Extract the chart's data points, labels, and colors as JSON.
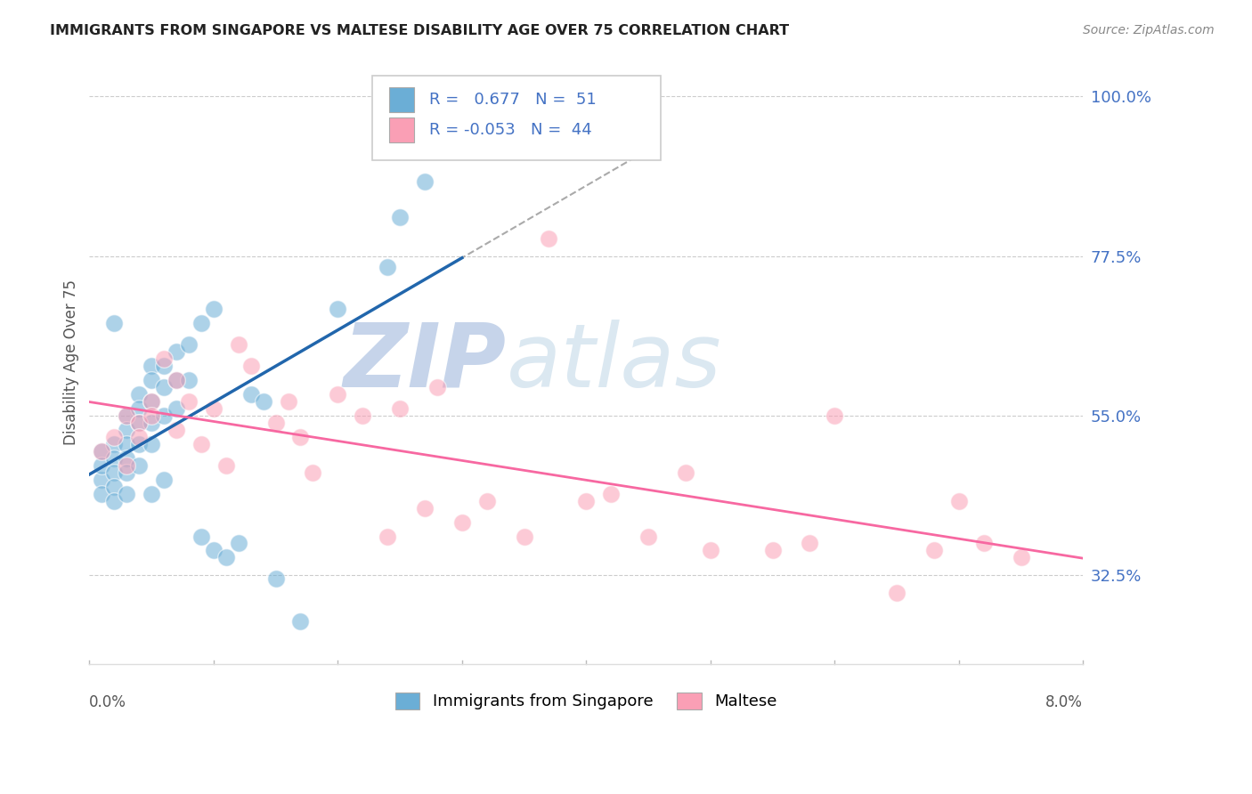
{
  "title": "IMMIGRANTS FROM SINGAPORE VS MALTESE DISABILITY AGE OVER 75 CORRELATION CHART",
  "source": "Source: ZipAtlas.com",
  "ylabel": "Disability Age Over 75",
  "yticks": [
    "100.0%",
    "77.5%",
    "55.0%",
    "32.5%"
  ],
  "ytick_vals": [
    1.0,
    0.775,
    0.55,
    0.325
  ],
  "xmin": 0.0,
  "xmax": 0.08,
  "ymin": 0.2,
  "ymax": 1.05,
  "blue_R": "0.677",
  "blue_N": "51",
  "pink_R": "-0.053",
  "pink_N": "44",
  "legend_label_blue": "Immigrants from Singapore",
  "legend_label_pink": "Maltese",
  "blue_color": "#6baed6",
  "pink_color": "#fa9fb5",
  "blue_line_color": "#2166ac",
  "pink_line_color": "#f768a1",
  "axis_label_color": "#555555",
  "grid_color": "#cccccc",
  "watermark_color_zip": "#c8d8f0",
  "watermark_color_atlas": "#c8d8e8",
  "blue_scatter_x": [
    0.001,
    0.001,
    0.001,
    0.001,
    0.002,
    0.002,
    0.002,
    0.002,
    0.002,
    0.002,
    0.003,
    0.003,
    0.003,
    0.003,
    0.003,
    0.003,
    0.004,
    0.004,
    0.004,
    0.004,
    0.004,
    0.005,
    0.005,
    0.005,
    0.005,
    0.005,
    0.005,
    0.006,
    0.006,
    0.006,
    0.006,
    0.007,
    0.007,
    0.007,
    0.008,
    0.008,
    0.009,
    0.009,
    0.01,
    0.01,
    0.011,
    0.012,
    0.013,
    0.014,
    0.015,
    0.017,
    0.02,
    0.024,
    0.025,
    0.027,
    0.03
  ],
  "blue_scatter_y": [
    0.46,
    0.5,
    0.48,
    0.44,
    0.68,
    0.51,
    0.49,
    0.47,
    0.45,
    0.43,
    0.55,
    0.53,
    0.51,
    0.49,
    0.47,
    0.44,
    0.58,
    0.56,
    0.54,
    0.51,
    0.48,
    0.62,
    0.6,
    0.57,
    0.54,
    0.51,
    0.44,
    0.62,
    0.59,
    0.55,
    0.46,
    0.64,
    0.6,
    0.56,
    0.65,
    0.6,
    0.68,
    0.38,
    0.7,
    0.36,
    0.35,
    0.37,
    0.58,
    0.57,
    0.32,
    0.26,
    0.7,
    0.76,
    0.83,
    0.88,
    0.95
  ],
  "pink_scatter_x": [
    0.001,
    0.002,
    0.003,
    0.003,
    0.004,
    0.004,
    0.005,
    0.005,
    0.006,
    0.007,
    0.007,
    0.008,
    0.009,
    0.01,
    0.011,
    0.012,
    0.013,
    0.015,
    0.016,
    0.017,
    0.018,
    0.02,
    0.022,
    0.024,
    0.025,
    0.027,
    0.028,
    0.03,
    0.032,
    0.035,
    0.037,
    0.04,
    0.042,
    0.045,
    0.048,
    0.05,
    0.055,
    0.058,
    0.06,
    0.065,
    0.068,
    0.07,
    0.072,
    0.075
  ],
  "pink_scatter_y": [
    0.5,
    0.52,
    0.55,
    0.48,
    0.54,
    0.52,
    0.57,
    0.55,
    0.63,
    0.6,
    0.53,
    0.57,
    0.51,
    0.56,
    0.48,
    0.65,
    0.62,
    0.54,
    0.57,
    0.52,
    0.47,
    0.58,
    0.55,
    0.38,
    0.56,
    0.42,
    0.59,
    0.4,
    0.43,
    0.38,
    0.8,
    0.43,
    0.44,
    0.38,
    0.47,
    0.36,
    0.36,
    0.37,
    0.55,
    0.3,
    0.36,
    0.43,
    0.37,
    0.35
  ]
}
